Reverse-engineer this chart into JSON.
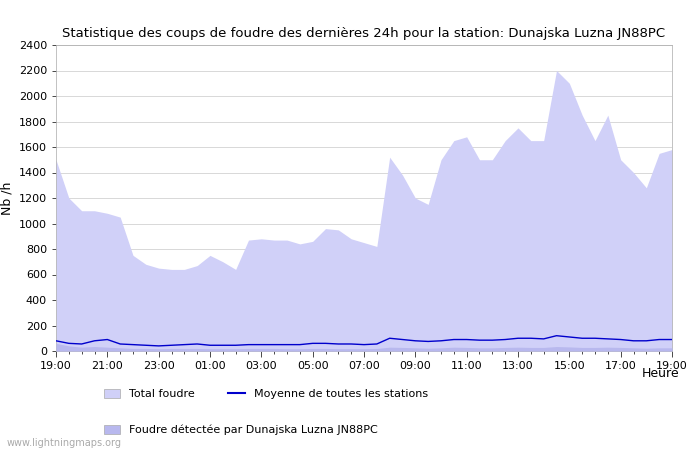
{
  "title": "Statistique des coups de foudre des dernières 24h pour la station: Dunajska Luzna JN88PC",
  "xlabel": "Heure",
  "ylabel": "Nb /h",
  "ylim": [
    0,
    2400
  ],
  "yticks": [
    0,
    200,
    400,
    600,
    800,
    1000,
    1200,
    1400,
    1600,
    1800,
    2000,
    2200,
    2400
  ],
  "xtick_labels": [
    "19:00",
    "21:00",
    "23:00",
    "01:00",
    "03:00",
    "05:00",
    "07:00",
    "09:00",
    "11:00",
    "13:00",
    "15:00",
    "17:00",
    "19:00"
  ],
  "background_color": "#ffffff",
  "plot_bg_color": "#ffffff",
  "grid_color": "#d8d8d8",
  "fill_color_total": "#d0d0f8",
  "fill_color_local": "#b8b8ee",
  "line_color_moyenne": "#0000cc",
  "watermark": "www.lightningmaps.org",
  "x_total": [
    0,
    1,
    2,
    3,
    4,
    5,
    6,
    7,
    8,
    9,
    10,
    11,
    12,
    13,
    14,
    15,
    16,
    17,
    18,
    19,
    20,
    21,
    22,
    23,
    24,
    25,
    26,
    27,
    28,
    29,
    30,
    31,
    32,
    33,
    34,
    35,
    36,
    37,
    38,
    39,
    40,
    41,
    42,
    43,
    44,
    45,
    46,
    47,
    48
  ],
  "total_foudre": [
    1500,
    1200,
    1100,
    1100,
    1080,
    1050,
    750,
    680,
    650,
    640,
    640,
    670,
    750,
    700,
    640,
    870,
    880,
    870,
    870,
    840,
    860,
    960,
    950,
    880,
    850,
    820,
    1520,
    1380,
    1200,
    1150,
    1500,
    1650,
    1680,
    1500,
    1500,
    1650,
    1750,
    1650,
    1650,
    2200,
    2100,
    1850,
    1650,
    1850,
    1500,
    1400,
    1280,
    1550,
    1580
  ],
  "moyenne": [
    80,
    60,
    55,
    80,
    90,
    55,
    50,
    45,
    40,
    45,
    50,
    55,
    45,
    45,
    45,
    50,
    50,
    50,
    50,
    50,
    60,
    60,
    55,
    55,
    50,
    55,
    100,
    90,
    80,
    75,
    80,
    90,
    90,
    85,
    85,
    90,
    100,
    100,
    95,
    120,
    110,
    100,
    100,
    95,
    90,
    80,
    80,
    90,
    90
  ],
  "local_foudre": [
    60,
    40,
    30,
    35,
    30,
    25,
    20,
    20,
    18,
    20,
    20,
    20,
    18,
    18,
    18,
    20,
    20,
    20,
    18,
    18,
    20,
    20,
    18,
    18,
    18,
    20,
    30,
    28,
    25,
    22,
    25,
    30,
    28,
    25,
    25,
    28,
    30,
    28,
    28,
    35,
    32,
    28,
    28,
    30,
    28,
    25,
    22,
    25,
    25
  ],
  "figsize": [
    7.0,
    4.5
  ],
  "dpi": 100
}
